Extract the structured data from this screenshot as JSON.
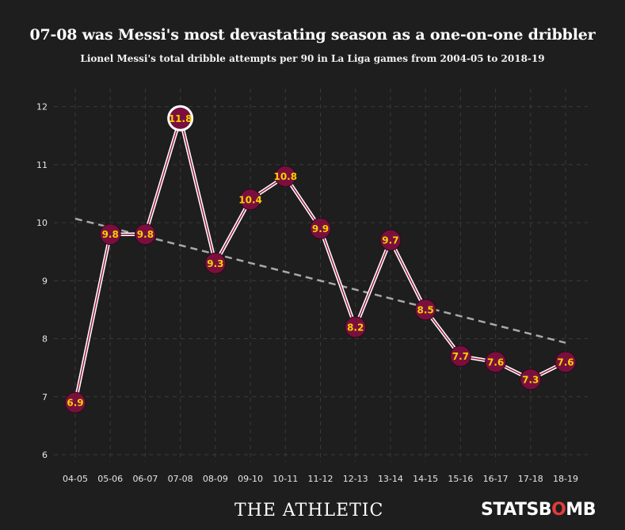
{
  "title": "07-08 was Messi's most devastating season as a one-on-one dribbler",
  "subtitle": "Lionel Messi's total dribble attempts per 90 in La Liga games from 2004-05 to 2018-19",
  "branding": {
    "left": "THE ATHLETIC",
    "right_prefix": "STATSB",
    "right_accent": "O",
    "right_suffix": "MB"
  },
  "colors": {
    "background": "#1e1e1e",
    "point_fill": "#7a0f3e",
    "point_label": "#f5d000",
    "line": "#ffffff",
    "line_inner": "#9b1b4b",
    "trend": "#a9a9a9",
    "grid": "#3a3a3a",
    "highlight_ring": "#ffffff"
  },
  "chart_data": {
    "type": "line",
    "title": "07-08 was Messi's most devastating season as a one-on-one dribbler",
    "subtitle": "Lionel Messi's total dribble attempts per 90 in La Liga games from 2004-05 to 2018-19",
    "categories": [
      "04-05",
      "05-06",
      "06-07",
      "07-08",
      "08-09",
      "09-10",
      "10-11",
      "11-12",
      "12-13",
      "13-14",
      "14-15",
      "15-16",
      "16-17",
      "17-18",
      "18-19"
    ],
    "series": [
      {
        "name": "Dribble attempts per 90",
        "values": [
          6.9,
          9.8,
          9.8,
          11.8,
          9.3,
          10.4,
          10.8,
          9.9,
          8.2,
          9.7,
          8.5,
          7.7,
          7.6,
          7.3,
          7.6
        ],
        "labels": [
          "6.9",
          "9.8",
          "9.8",
          "11.8",
          "9.3",
          "10.4",
          "10.8",
          "9.9",
          "8.2",
          "9.7",
          "8.5",
          "7.7",
          "7.6",
          "7.3",
          "7.6"
        ]
      }
    ],
    "trend": {
      "start": 10.07,
      "end": 7.93,
      "style": "dashed"
    },
    "highlight_index": 3,
    "ylim": [
      5.85,
      12.2
    ],
    "yticks": [
      6,
      7,
      8,
      9,
      10,
      11,
      12
    ],
    "ytick_labels": [
      "6",
      "7",
      "8",
      "9",
      "10",
      "11",
      "12"
    ],
    "xlabel": "",
    "ylabel": "",
    "grid": true
  }
}
